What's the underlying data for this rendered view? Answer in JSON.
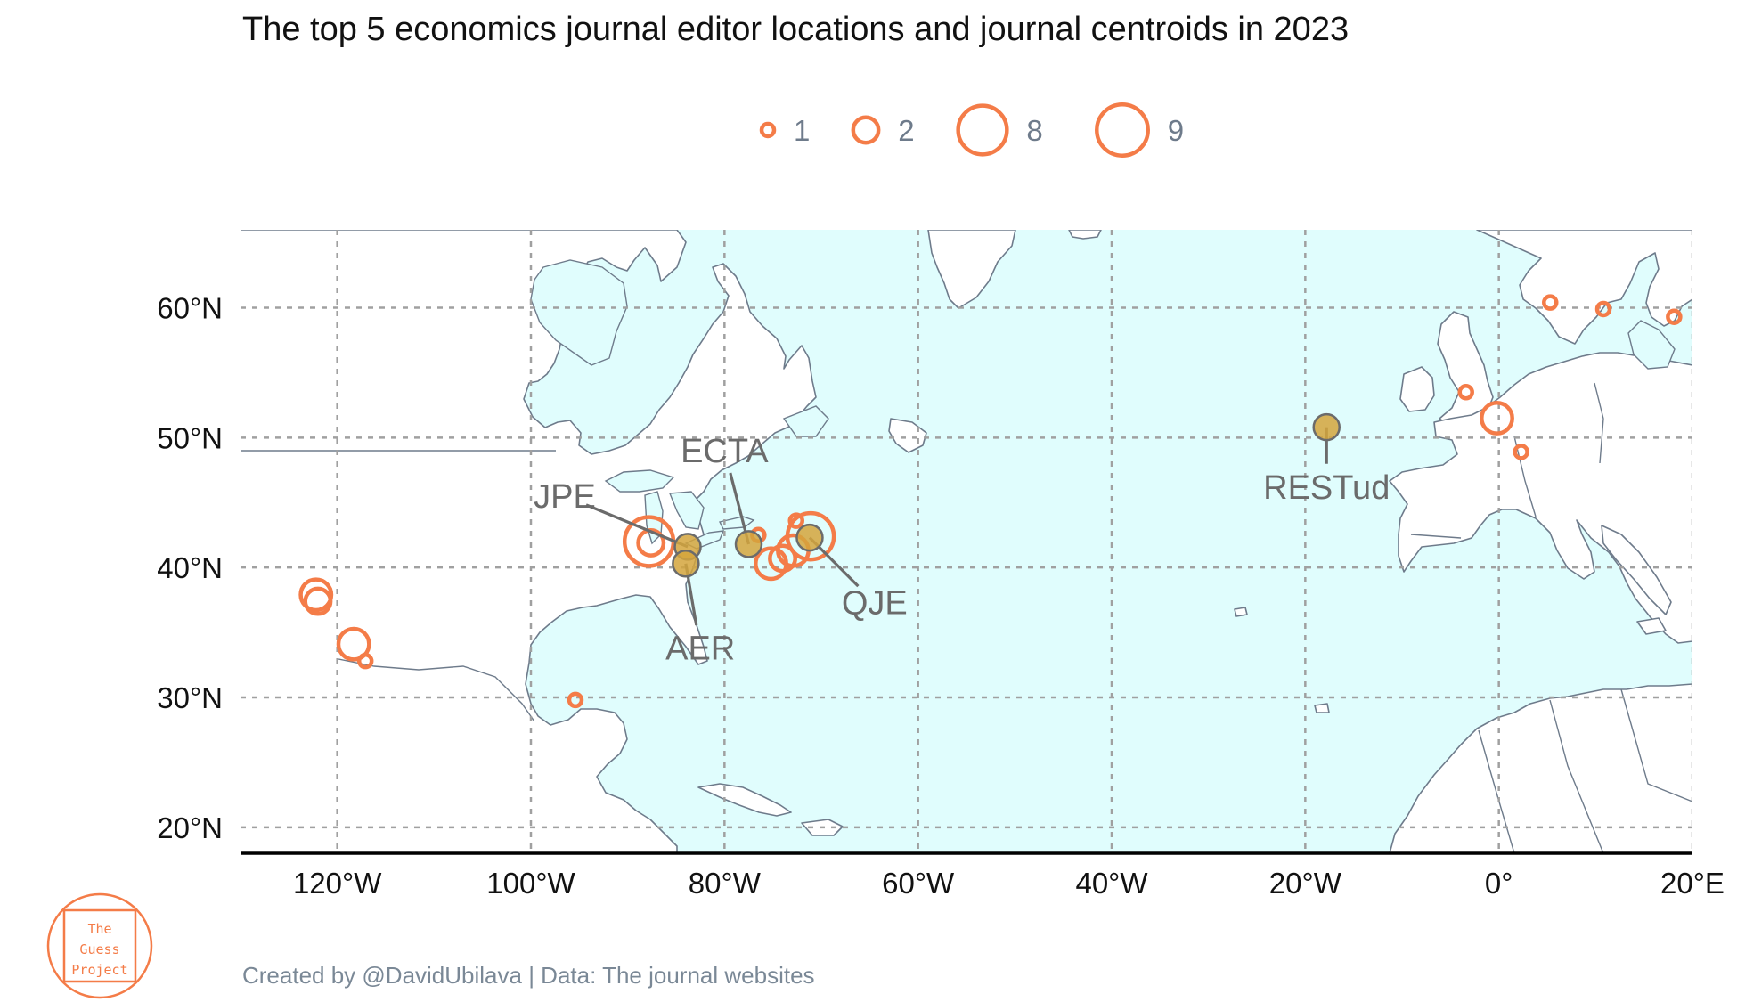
{
  "title": "The top 5 economics journal editor locations and journal centroids in 2023",
  "caption": "Created by @DavidUbilava | Data: The journal websites",
  "logo": {
    "lines": [
      "The",
      "Guess",
      "Project"
    ]
  },
  "colors": {
    "ocean": "#e0fdfd",
    "land": "#ffffff",
    "coast": "#6e7b8b",
    "editor_circle": "#f47c48",
    "centroid": "#d4a53c",
    "label": "#6b6b6b",
    "grid": "#a0a0a0"
  },
  "map": {
    "lon_range": [
      -130,
      20
    ],
    "lat_range": [
      18,
      66
    ],
    "lon_ticks": [
      {
        "value": -120,
        "label": "120°W"
      },
      {
        "value": -100,
        "label": "100°W"
      },
      {
        "value": -80,
        "label": "80°W"
      },
      {
        "value": -60,
        "label": "60°W"
      },
      {
        "value": -40,
        "label": "40°W"
      },
      {
        "value": -20,
        "label": "20°W"
      },
      {
        "value": 0,
        "label": "0°"
      },
      {
        "value": 20,
        "label": "20°E"
      }
    ],
    "lat_ticks": [
      {
        "value": 60,
        "label": "60°N"
      },
      {
        "value": 50,
        "label": "50°N"
      },
      {
        "value": 40,
        "label": "40°N"
      },
      {
        "value": 30,
        "label": "30°N"
      },
      {
        "value": 20,
        "label": "20°N"
      }
    ],
    "gridlines": true
  },
  "legend": {
    "position": "top",
    "sizes": [
      {
        "value": 1,
        "label": "1"
      },
      {
        "value": 2,
        "label": "2"
      },
      {
        "value": 8,
        "label": "8"
      },
      {
        "value": 9,
        "label": "9"
      }
    ]
  },
  "editors": [
    {
      "lon": -122.2,
      "lat": 37.9,
      "count": 3
    },
    {
      "lon": -122.0,
      "lat": 37.4,
      "count": 2
    },
    {
      "lon": -118.3,
      "lat": 34.1,
      "count": 3
    },
    {
      "lon": -117.1,
      "lat": 32.8,
      "count": 1
    },
    {
      "lon": -95.4,
      "lat": 29.8,
      "count": 1
    },
    {
      "lon": -87.8,
      "lat": 42.0,
      "count": 9
    },
    {
      "lon": -87.6,
      "lat": 41.9,
      "count": 2
    },
    {
      "lon": -76.5,
      "lat": 42.5,
      "count": 1
    },
    {
      "lon": -75.2,
      "lat": 40.3,
      "count": 3
    },
    {
      "lon": -74.0,
      "lat": 40.7,
      "count": 2
    },
    {
      "lon": -72.9,
      "lat": 41.3,
      "count": 3
    },
    {
      "lon": -72.6,
      "lat": 43.6,
      "count": 1
    },
    {
      "lon": -71.1,
      "lat": 42.4,
      "count": 8
    },
    {
      "lon": -3.4,
      "lat": 53.5,
      "count": 1
    },
    {
      "lon": -0.2,
      "lat": 51.5,
      "count": 3
    },
    {
      "lon": 2.3,
      "lat": 48.9,
      "count": 1
    },
    {
      "lon": 5.3,
      "lat": 60.4,
      "count": 1
    },
    {
      "lon": 10.8,
      "lat": 59.9,
      "count": 1
    },
    {
      "lon": 18.1,
      "lat": 59.3,
      "count": 1
    }
  ],
  "centroids": [
    {
      "name": "JPE",
      "lon": -83.8,
      "lat": 41.6,
      "label_lon": -96.5,
      "label_lat": 45.5
    },
    {
      "name": "AER",
      "lon": -84.0,
      "lat": 40.3,
      "label_lon": -82.5,
      "label_lat": 33.8
    },
    {
      "name": "ECTA",
      "lon": -77.5,
      "lat": 41.8,
      "label_lon": -80.0,
      "label_lat": 49.0
    },
    {
      "name": "QJE",
      "lon": -71.2,
      "lat": 42.3,
      "label_lon": -64.5,
      "label_lat": 37.3
    },
    {
      "name": "RESTud",
      "lon": -17.8,
      "lat": 50.8,
      "label_lon": -17.8,
      "label_lat": 46.2
    }
  ]
}
